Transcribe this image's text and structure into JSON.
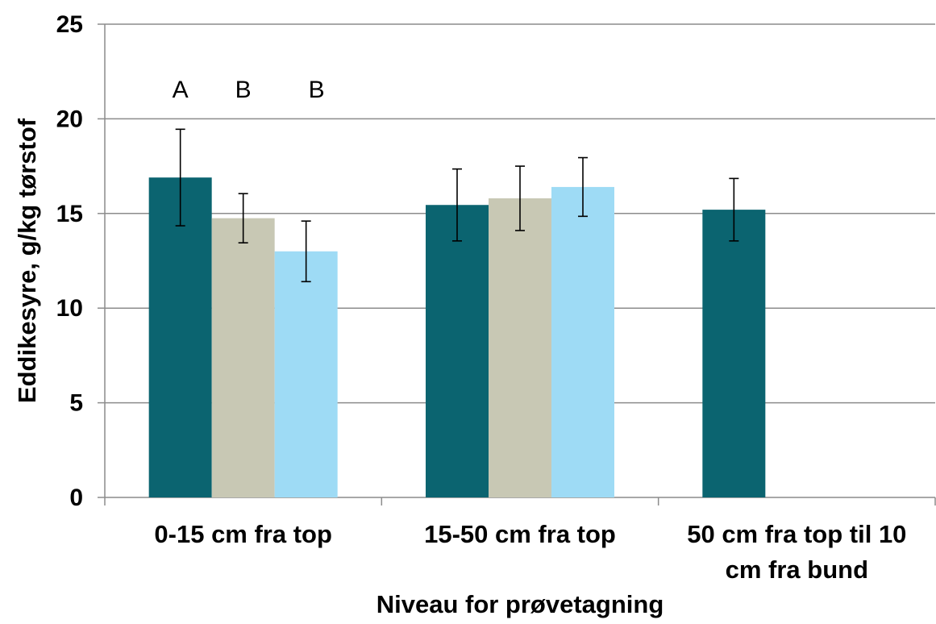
{
  "chart_data": {
    "type": "bar",
    "xlabel": "Niveau for prøvetagning",
    "ylabel": "Eddikesyre, g/kg tørstof",
    "ylim": [
      0,
      25
    ],
    "yticks": [
      "0",
      "5",
      "10",
      "15",
      "20",
      "25"
    ],
    "grid": true,
    "legend": "none",
    "categories": [
      [
        "0-15 cm fra top"
      ],
      [
        "15-50 cm fra top"
      ],
      [
        "50 cm fra top til 10",
        "cm fra bund"
      ]
    ],
    "series": [
      {
        "color": "#0B6470",
        "values": [
          16.9,
          15.45,
          15.2
        ],
        "errors": [
          2.55,
          1.9,
          1.65
        ]
      },
      {
        "color": "#C8C8B4",
        "values": [
          14.75,
          15.8,
          null
        ],
        "errors": [
          1.3,
          1.7,
          null
        ]
      },
      {
        "color": "#9EDBF5",
        "values": [
          13.0,
          16.4,
          null
        ],
        "errors": [
          1.6,
          1.55,
          null
        ]
      }
    ],
    "annotations": [
      {
        "text": "A",
        "category": 0,
        "series": 0
      },
      {
        "text": "B",
        "category": 0,
        "series": 1
      },
      {
        "text": "B",
        "category": 0,
        "series": 2
      }
    ]
  }
}
